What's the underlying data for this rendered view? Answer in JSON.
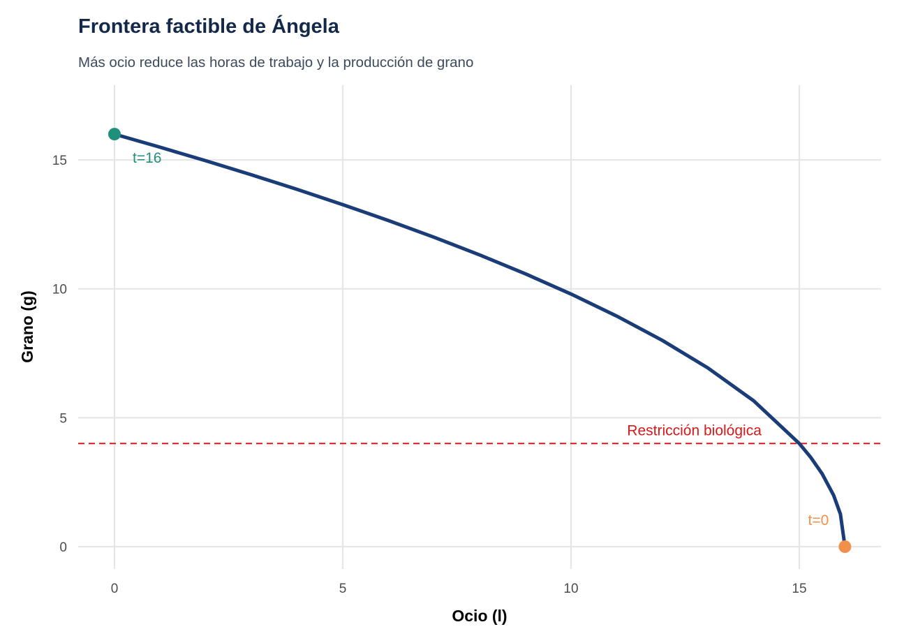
{
  "chart_data": {
    "type": "line",
    "title": "Frontera factible de Ángela",
    "subtitle": "Más ocio reduce las horas de trabajo y la producción de grano",
    "xlabel": "Ocio (l)",
    "ylabel": "Grano (g)",
    "xlim": [
      -0.8,
      16.8
    ],
    "ylim": [
      -0.8,
      17.6
    ],
    "xticks": [
      0,
      5,
      10,
      15
    ],
    "yticks": [
      0,
      5,
      10,
      15
    ],
    "grid": true,
    "series": [
      {
        "name": "Frontera",
        "color": "#1a3c78",
        "x": [
          0,
          1,
          2,
          3,
          4,
          5,
          6,
          7,
          8,
          9,
          10,
          11,
          12,
          13,
          14,
          15,
          15.25,
          15.5,
          15.75,
          15.9,
          16
        ],
        "y": [
          16,
          15.492,
          14.967,
          14.422,
          13.856,
          13.266,
          12.649,
          12,
          11.314,
          10.583,
          9.798,
          8.944,
          8,
          6.928,
          5.657,
          4,
          3.464,
          2.828,
          2,
          1.265,
          0
        ]
      }
    ],
    "points": [
      {
        "label": "t=16",
        "x": 0,
        "y": 16,
        "color": "#21907a"
      },
      {
        "label": "t=0",
        "x": 16,
        "y": 0,
        "color": "#f2904b"
      }
    ],
    "hline": {
      "y": 4,
      "label": "Restricción biológica",
      "color": "#d7191c"
    }
  }
}
